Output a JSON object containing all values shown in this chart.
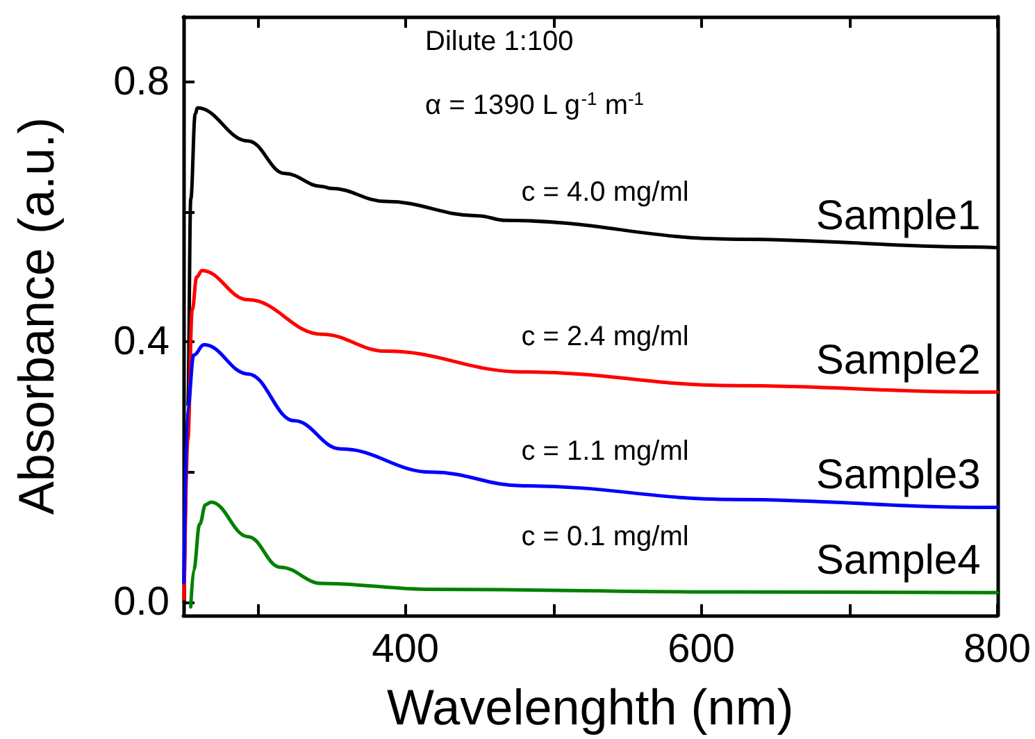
{
  "chart_data": {
    "type": "line",
    "xlabel": "Wavelenghth (nm)",
    "ylabel": "Absorbance (a.u.)",
    "xlim": [
      250,
      800
    ],
    "ylim": [
      -0.02,
      0.9
    ],
    "xticks": [
      {
        "value": 300,
        "label": null
      },
      400,
      {
        "value": 500,
        "label": null
      },
      600,
      {
        "value": 700,
        "label": null
      },
      800
    ],
    "yticks": [
      {
        "value": 0,
        "label": "0.0"
      },
      {
        "value": 0.2,
        "label": null
      },
      0.4,
      {
        "value": 0.6,
        "label": null
      },
      0.8
    ],
    "grid": false,
    "legend": false,
    "marker": "none",
    "line_style": "solid",
    "tick_labels": "xy",
    "annotations": [
      "Dilute 1:100",
      "α = 1390 L g$^{-1}$ m$^{-1}$",
      "c = 4.0 mg/ml",
      "c = 2.4 mg/ml",
      "c = 1.1 mg/ml",
      "c = 0.1 mg/ml"
    ],
    "series": [
      {
        "name": "Sample1",
        "color": "#000000",
        "x": [
          250.5,
          253,
          255,
          258,
          259.5,
          293.7,
          318.6,
          343.6,
          350,
          387,
          449,
          468,
          624,
          789,
          800
        ],
        "values": [
          0.0,
          0.3,
          0.62,
          0.75,
          0.76,
          0.709,
          0.659,
          0.639,
          0.636,
          0.616,
          0.594,
          0.587,
          0.558,
          0.546,
          0.545
        ]
      },
      {
        "name": "Sample2",
        "color": "#ff0000",
        "x": [
          250.5,
          253,
          256,
          259,
          262.6,
          293.7,
          343.6,
          387,
          480,
          624,
          789,
          800
        ],
        "values": [
          0.005,
          0.25,
          0.45,
          0.5,
          0.51,
          0.465,
          0.412,
          0.386,
          0.354,
          0.333,
          0.323,
          0.323
        ]
      },
      {
        "name": "Sample3",
        "color": "#0000ff",
        "x": [
          250.3,
          253,
          257,
          264,
          293.7,
          325,
          356,
          418,
          480,
          624,
          789,
          800
        ],
        "values": [
          0.03,
          0.3,
          0.38,
          0.396,
          0.351,
          0.279,
          0.236,
          0.2,
          0.179,
          0.158,
          0.146,
          0.146
        ]
      },
      {
        "name": "Sample4",
        "color": "#008000",
        "x": [
          255,
          257,
          261,
          265,
          268.8,
          293.7,
          315.5,
          343.6,
          418,
          624,
          800
        ],
        "values": [
          -0.007,
          0.05,
          0.12,
          0.15,
          0.154,
          0.101,
          0.054,
          0.029,
          0.02,
          0.016,
          0.015
        ]
      }
    ]
  }
}
